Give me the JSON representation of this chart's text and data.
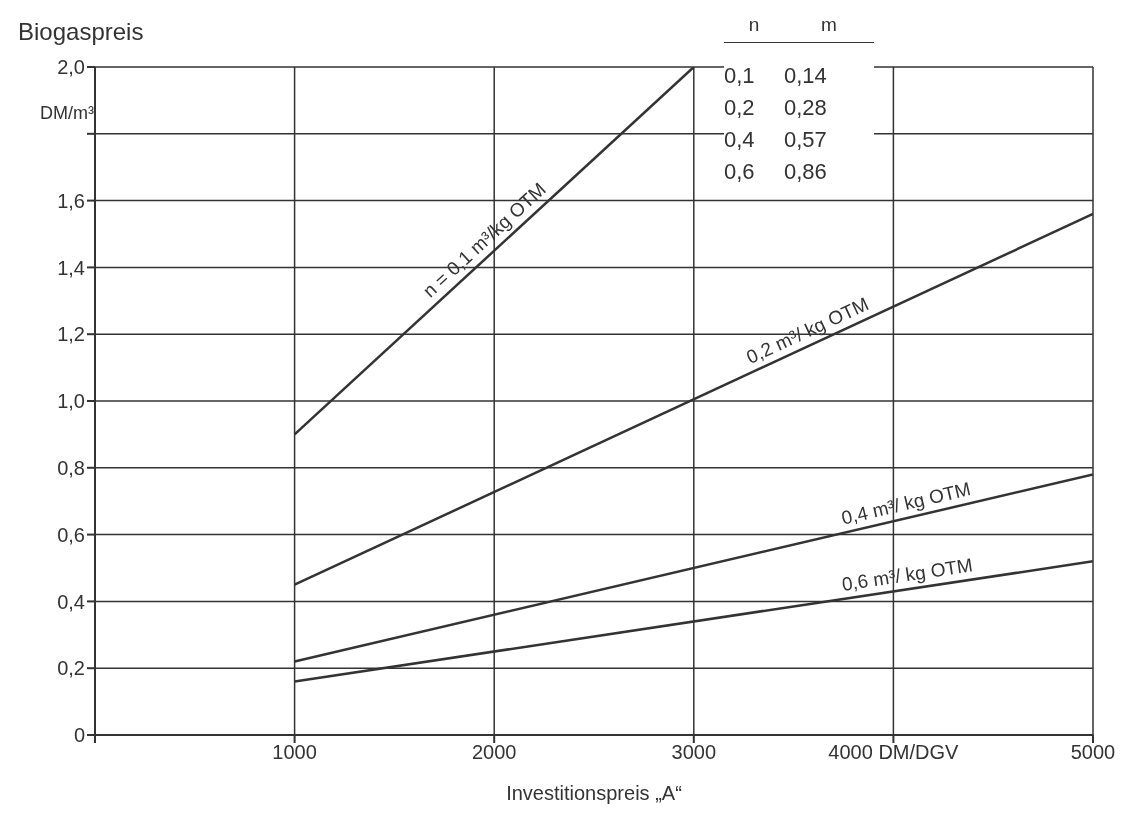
{
  "chart_data": {
    "type": "line",
    "ylabel": "Biogaspreis",
    "xlabel": "Investitionspreis „A“",
    "xlim": [
      0,
      5000
    ],
    "xticks": [
      {
        "value": 0,
        "label": null
      },
      1000,
      2000,
      3000,
      {
        "value": 4000,
        "label": "4000 DM/DGV"
      },
      5000
    ],
    "ylim": [
      0,
      2.0
    ],
    "yticks": [
      0,
      {
        "value": 0.2,
        "label": "0,2"
      },
      {
        "value": 0.4,
        "label": "0,4"
      },
      {
        "value": 0.6,
        "label": "0,6"
      },
      {
        "value": 0.8,
        "label": "0,8"
      },
      {
        "value": 1.0,
        "label": "1,0"
      },
      {
        "value": 1.2,
        "label": "1,2"
      },
      {
        "value": 1.4,
        "label": "1,4"
      },
      {
        "value": 1.6,
        "label": "1,6"
      },
      {
        "value": 1.8,
        "label": null
      },
      {
        "value": 2.0,
        "label": "2,0"
      }
    ],
    "grid": true,
    "legend": false,
    "marker": "none",
    "line_style": "solid",
    "series": [
      {
        "name": "n = 0,1 m³/kg OTM",
        "color": "#333333",
        "x": [
          1000,
          3000
        ],
        "values": [
          0.9,
          2.0
        ]
      },
      {
        "name": "0,2 m³/ kg OTM",
        "color": "#333333",
        "x": [
          1000,
          5000
        ],
        "values": [
          0.45,
          1.56
        ]
      },
      {
        "name": "0,4 m³/ kg OTM",
        "color": "#333333",
        "x": [
          1000,
          5000
        ],
        "values": [
          0.22,
          0.78
        ]
      },
      {
        "name": "0,6 m³/ kg OTM",
        "color": "#333333",
        "x": [
          1000,
          5000
        ],
        "values": [
          0.16,
          0.52
        ]
      }
    ],
    "annotations": [
      "DM/m³",
      "n",
      "m",
      "0,1",
      "0,14",
      "0,2",
      "0,28",
      "0,4",
      "0,57",
      "0,6",
      "0,86"
    ]
  }
}
